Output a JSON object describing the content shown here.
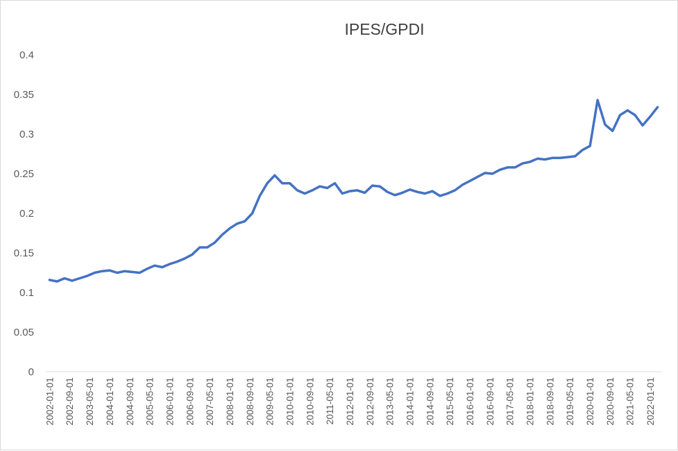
{
  "chart_data": {
    "type": "line",
    "title": "IPES/GPDI",
    "xlabel": "",
    "ylabel": "",
    "ylim": [
      0,
      0.4
    ],
    "yticks": [
      "0",
      "0.05",
      "0.1",
      "0.15",
      "0.2",
      "0.25",
      "0.3",
      "0.35",
      "0.4"
    ],
    "grid": false,
    "legend": "none",
    "line_color": "#4472C4",
    "x_tick_labels": [
      "2002-01-01",
      "2002-09-01",
      "2003-05-01",
      "2004-01-01",
      "2004-09-01",
      "2005-05-01",
      "2006-01-01",
      "2006-09-01",
      "2007-05-01",
      "2008-01-01",
      "2008-09-01",
      "2009-05-01",
      "2010-01-01",
      "2010-09-01",
      "2011-05-01",
      "2012-01-01",
      "2012-09-01",
      "2013-05-01",
      "2014-01-01",
      "2014-09-01",
      "2015-05-01",
      "2016-01-01",
      "2016-09-01",
      "2017-05-01",
      "2018-01-01",
      "2018-09-01",
      "2019-05-01",
      "2020-01-01",
      "2020-09-01",
      "2021-05-01",
      "2022-01-01"
    ],
    "x": [
      "2002-01-01",
      "2002-04-01",
      "2002-07-01",
      "2002-10-01",
      "2003-01-01",
      "2003-04-01",
      "2003-07-01",
      "2003-10-01",
      "2004-01-01",
      "2004-04-01",
      "2004-07-01",
      "2004-10-01",
      "2005-01-01",
      "2005-04-01",
      "2005-07-01",
      "2005-10-01",
      "2006-01-01",
      "2006-04-01",
      "2006-07-01",
      "2006-10-01",
      "2007-01-01",
      "2007-04-01",
      "2007-07-01",
      "2007-10-01",
      "2008-01-01",
      "2008-04-01",
      "2008-07-01",
      "2008-10-01",
      "2009-01-01",
      "2009-04-01",
      "2009-07-01",
      "2009-10-01",
      "2010-01-01",
      "2010-04-01",
      "2010-07-01",
      "2010-10-01",
      "2011-01-01",
      "2011-04-01",
      "2011-07-01",
      "2011-10-01",
      "2012-01-01",
      "2012-04-01",
      "2012-07-01",
      "2012-10-01",
      "2013-01-01",
      "2013-04-01",
      "2013-07-01",
      "2013-10-01",
      "2014-01-01",
      "2014-04-01",
      "2014-07-01",
      "2014-10-01",
      "2015-01-01",
      "2015-04-01",
      "2015-07-01",
      "2015-10-01",
      "2016-01-01",
      "2016-04-01",
      "2016-07-01",
      "2016-10-01",
      "2017-01-01",
      "2017-04-01",
      "2017-07-01",
      "2017-10-01",
      "2018-01-01",
      "2018-04-01",
      "2018-07-01",
      "2018-10-01",
      "2019-01-01",
      "2019-04-01",
      "2019-07-01",
      "2019-10-01",
      "2020-01-01",
      "2020-04-01",
      "2020-07-01",
      "2020-10-01",
      "2021-01-01",
      "2021-04-01",
      "2021-07-01",
      "2021-10-01",
      "2022-01-01",
      "2022-04-01"
    ],
    "series": [
      {
        "values": [
          0.116,
          0.114,
          0.118,
          0.115,
          0.118,
          0.121,
          0.125,
          0.127,
          0.128,
          0.125,
          0.127,
          0.126,
          0.125,
          0.13,
          0.134,
          0.132,
          0.136,
          0.139,
          0.143,
          0.148,
          0.157,
          0.157,
          0.163,
          0.173,
          0.181,
          0.187,
          0.19,
          0.2,
          0.222,
          0.238,
          0.248,
          0.238,
          0.238,
          0.229,
          0.225,
          0.229,
          0.234,
          0.232,
          0.238,
          0.225,
          0.228,
          0.229,
          0.226,
          0.235,
          0.234,
          0.227,
          0.223,
          0.226,
          0.23,
          0.227,
          0.225,
          0.228,
          0.222,
          0.225,
          0.229,
          0.236,
          0.241,
          0.246,
          0.251,
          0.25,
          0.255,
          0.258,
          0.258,
          0.263,
          0.265,
          0.269,
          0.268,
          0.27,
          0.27,
          0.271,
          0.272,
          0.28,
          0.285,
          0.343,
          0.312,
          0.304,
          0.324,
          0.33,
          0.324,
          0.311,
          0.322,
          0.334
        ]
      }
    ]
  }
}
